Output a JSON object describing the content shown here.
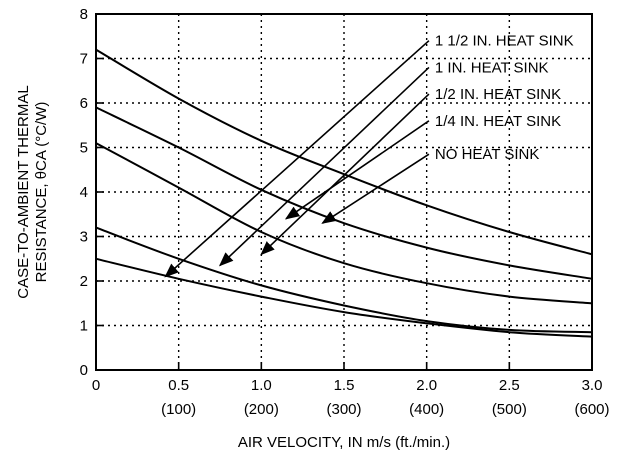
{
  "chart_data": {
    "type": "line",
    "xlabel": "AIR VELOCITY, IN m/s (ft./min.)",
    "ylabel_line1": "CASE-TO-AMBIENT THERMAL",
    "ylabel_line2": "RESISTANCE, θCA (°C/W)",
    "xlim": [
      0,
      3.0
    ],
    "ylim": [
      0,
      8
    ],
    "grid": true,
    "x_ticks": [
      {
        "value": 0,
        "label": "0",
        "sub": ""
      },
      {
        "value": 0.5,
        "label": "0.5",
        "sub": "(100)"
      },
      {
        "value": 1.0,
        "label": "1.0",
        "sub": "(200)"
      },
      {
        "value": 1.5,
        "label": "1.5",
        "sub": "(300)"
      },
      {
        "value": 2.0,
        "label": "2.0",
        "sub": "(400)"
      },
      {
        "value": 2.5,
        "label": "2.5",
        "sub": "(500)"
      },
      {
        "value": 3.0,
        "label": "3.0",
        "sub": "(600)"
      }
    ],
    "y_ticks": [
      "0",
      "1",
      "2",
      "3",
      "4",
      "5",
      "6",
      "7",
      "8"
    ],
    "series": [
      {
        "name": "NO HEAT SINK",
        "x": [
          0,
          0.5,
          1.0,
          1.5,
          2.0,
          2.5,
          3.0
        ],
        "y": [
          7.2,
          6.1,
          5.15,
          4.4,
          3.7,
          3.1,
          2.6
        ],
        "label_anchor": [
          0.73,
          6.3
        ],
        "arrow_target": [
          1.37,
          3.3
        ]
      },
      {
        "name": "1/4 IN. HEAT SINK",
        "x": [
          0,
          0.5,
          1.0,
          1.5,
          2.0,
          2.5,
          3.0
        ],
        "y": [
          5.9,
          5.0,
          4.05,
          3.3,
          2.75,
          2.35,
          2.05
        ],
        "label_anchor": [
          0.76,
          7.0
        ],
        "arrow_target": [
          1.15,
          3.4
        ]
      },
      {
        "name": "1/2 IN. HEAT SINK",
        "x": [
          0,
          0.5,
          1.0,
          1.5,
          2.0,
          2.5,
          3.0
        ],
        "y": [
          5.1,
          4.1,
          3.1,
          2.4,
          1.95,
          1.65,
          1.5
        ],
        "label_anchor": [
          0.72,
          5.9
        ],
        "arrow_target": [
          1.0,
          2.6
        ]
      },
      {
        "name": "1 IN. HEAT SINK",
        "x": [
          0,
          0.5,
          1.0,
          1.5,
          2.0,
          2.5,
          3.0
        ],
        "y": [
          3.2,
          2.5,
          1.9,
          1.45,
          1.1,
          0.9,
          0.85
        ],
        "label_anchor": [
          0.72,
          7.0
        ],
        "arrow_target": [
          0.75,
          2.35
        ]
      },
      {
        "name": "1 1/2 IN. HEAT SINK",
        "x": [
          0,
          0.5,
          1.0,
          1.5,
          2.0,
          2.5,
          3.0
        ],
        "y": [
          2.5,
          2.05,
          1.65,
          1.3,
          1.05,
          0.85,
          0.75
        ],
        "label_anchor": [
          0.76,
          7.0
        ],
        "arrow_target": [
          0.42,
          2.1
        ]
      }
    ]
  }
}
